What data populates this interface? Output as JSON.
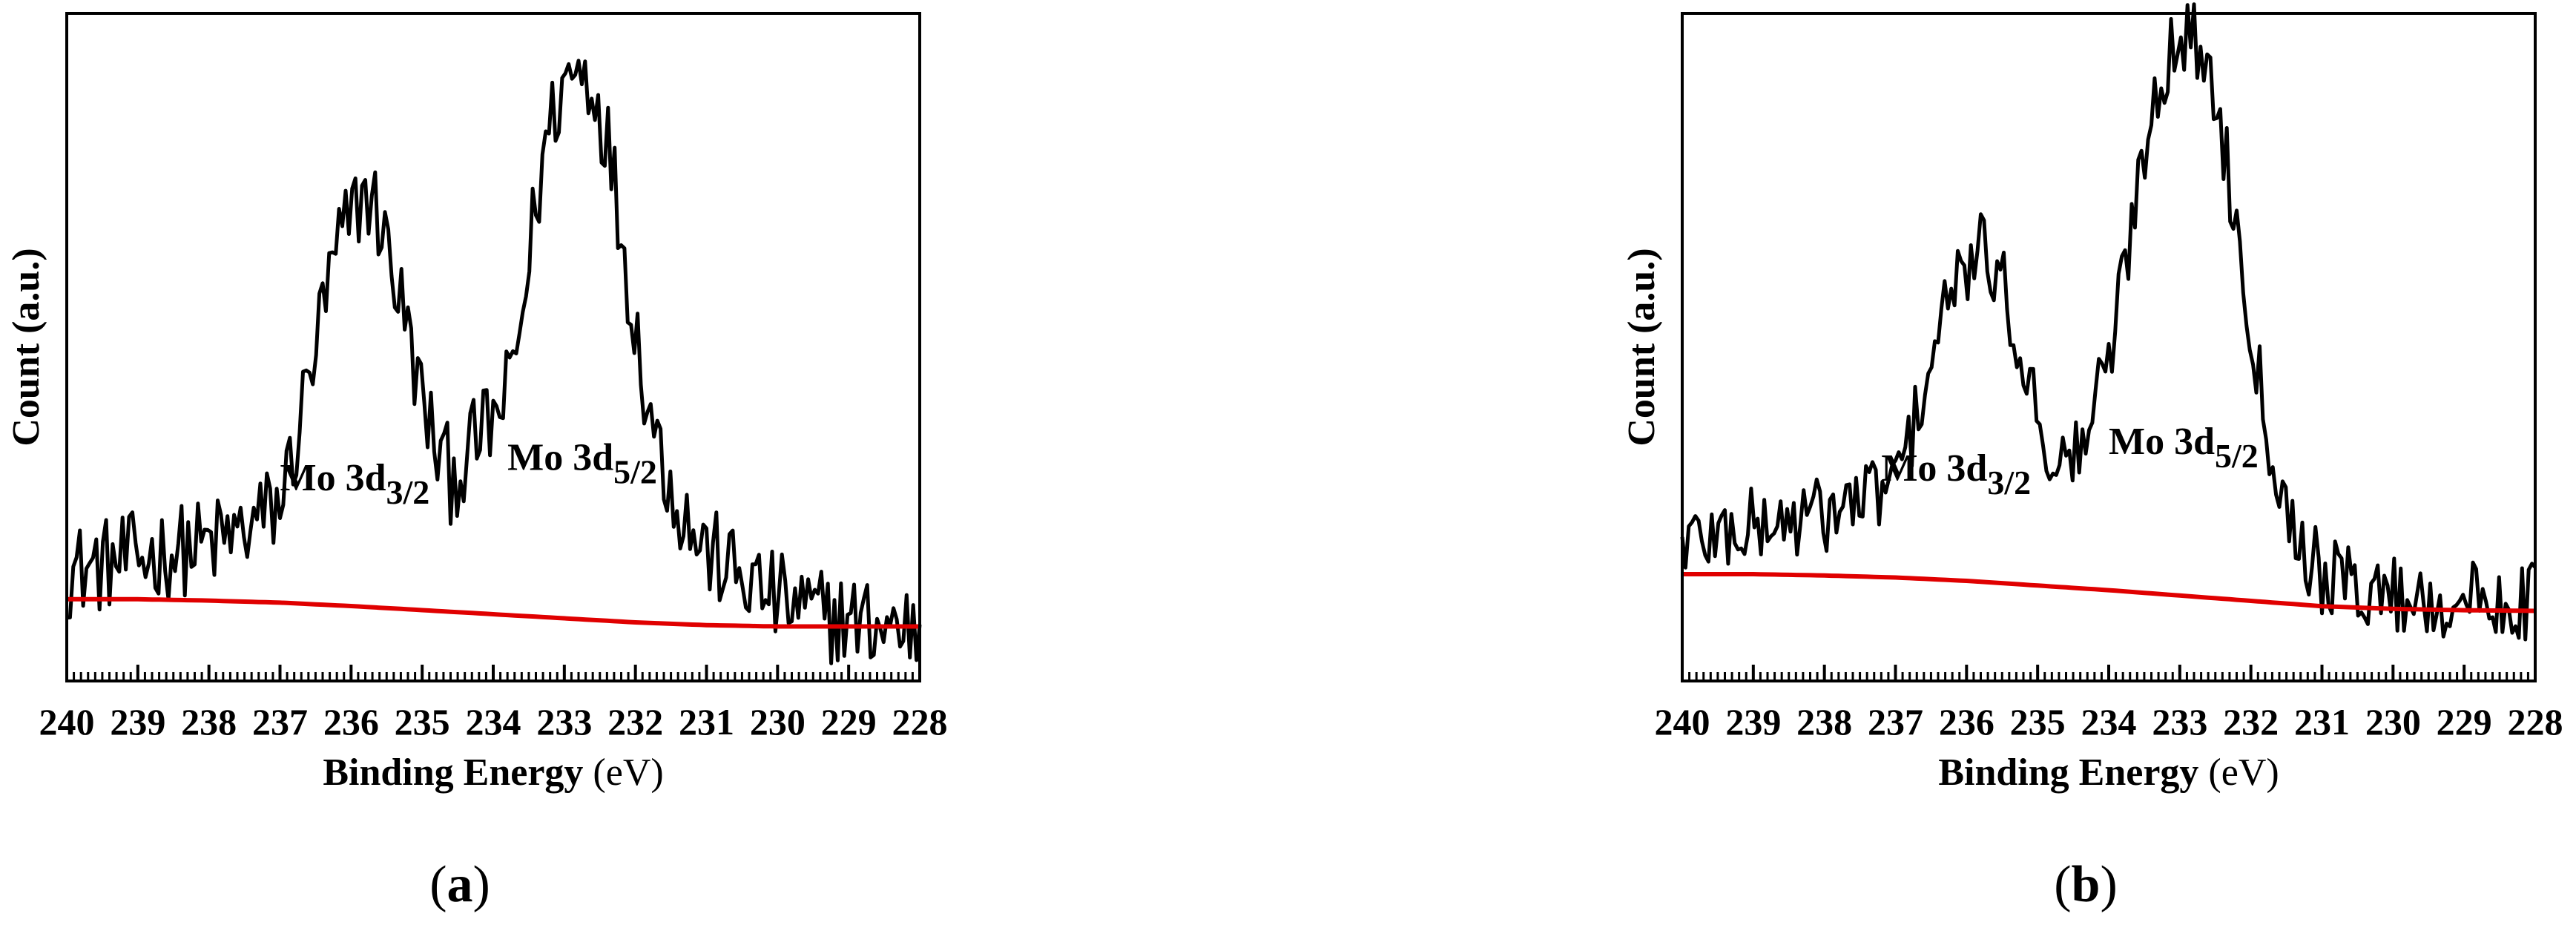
{
  "chart_data": [
    {
      "type": "line",
      "panel_label": {
        "open": "(",
        "letter": "a",
        "close": ")"
      },
      "xlabel": {
        "bold": "Binding Energy ",
        "normal": "(eV)"
      },
      "ylabel": "Count (a.u.)",
      "xlim": [
        240,
        228
      ],
      "ylim": [
        -0.08,
        0.9
      ],
      "x_reversed": true,
      "xticks": [
        240,
        239,
        238,
        237,
        236,
        235,
        234,
        233,
        232,
        231,
        230,
        229,
        228
      ],
      "grid": false,
      "annotations": [
        {
          "base": "Mo 3d",
          "sub": "3/2",
          "x": 237.0,
          "y": 0.2
        },
        {
          "base": "Mo 3d",
          "sub": "5/2",
          "x": 233.8,
          "y": 0.23
        }
      ],
      "series": [
        {
          "color": "#000000",
          "x": [
            240.0,
            239.5,
            239.0,
            238.5,
            238.0,
            237.5,
            237.0,
            236.8,
            236.6,
            236.4,
            236.2,
            236.0,
            235.8,
            235.6,
            235.4,
            235.2,
            235.0,
            234.8,
            234.6,
            234.4,
            234.2,
            234.0,
            233.8,
            233.6,
            233.4,
            233.2,
            233.0,
            232.8,
            232.6,
            232.4,
            232.2,
            232.0,
            231.8,
            231.6,
            231.4,
            231.2,
            231.0,
            230.5,
            230.0,
            229.5,
            229.0,
            228.5,
            228.0
          ],
          "y": [
            0.08,
            0.09,
            0.1,
            0.11,
            0.12,
            0.14,
            0.18,
            0.26,
            0.36,
            0.46,
            0.55,
            0.6,
            0.64,
            0.6,
            0.52,
            0.43,
            0.33,
            0.26,
            0.22,
            0.24,
            0.28,
            0.3,
            0.34,
            0.45,
            0.62,
            0.74,
            0.8,
            0.82,
            0.8,
            0.72,
            0.58,
            0.44,
            0.32,
            0.24,
            0.18,
            0.14,
            0.11,
            0.07,
            0.04,
            0.02,
            0.01,
            0.0,
            0.0
          ],
          "noise": 0.07
        },
        {
          "color": "#e00000",
          "x": [
            240,
            239,
            238,
            237,
            236,
            235,
            234,
            233,
            232,
            231,
            230,
            229,
            228
          ],
          "y": [
            0.04,
            0.04,
            0.038,
            0.035,
            0.03,
            0.024,
            0.018,
            0.012,
            0.006,
            0.002,
            0.0,
            0.0,
            0.0
          ]
        }
      ]
    },
    {
      "type": "line",
      "panel_label": {
        "open": "(",
        "letter": "b",
        "close": ")"
      },
      "xlabel": {
        "bold": "Binding Energy ",
        "normal": "(eV)"
      },
      "ylabel": "Count (a.u.)",
      "xlim": [
        240,
        228
      ],
      "ylim": [
        -0.1,
        0.9
      ],
      "x_reversed": true,
      "xticks": [
        240,
        239,
        238,
        237,
        236,
        235,
        234,
        233,
        232,
        231,
        230,
        229,
        228
      ],
      "grid": false,
      "annotations": [
        {
          "base": "Mo 3d",
          "sub": "3/2",
          "x": 237.2,
          "y": 0.2
        },
        {
          "base": "Mo 3d",
          "sub": "5/2",
          "x": 234.0,
          "y": 0.24
        }
      ],
      "series": [
        {
          "color": "#000000",
          "x": [
            240.0,
            239.5,
            239.0,
            238.5,
            238.0,
            237.5,
            237.0,
            236.8,
            236.6,
            236.4,
            236.2,
            236.0,
            235.8,
            235.6,
            235.4,
            235.2,
            235.0,
            234.8,
            234.6,
            234.4,
            234.2,
            234.0,
            233.8,
            233.6,
            233.4,
            233.2,
            233.0,
            232.8,
            232.6,
            232.4,
            232.2,
            232.0,
            231.8,
            231.6,
            231.4,
            231.2,
            231.0,
            230.5,
            230.0,
            229.5,
            229.0,
            228.5,
            228.0
          ],
          "y": [
            0.11,
            0.12,
            0.13,
            0.14,
            0.15,
            0.17,
            0.2,
            0.26,
            0.34,
            0.42,
            0.48,
            0.52,
            0.54,
            0.52,
            0.46,
            0.38,
            0.3,
            0.24,
            0.22,
            0.25,
            0.31,
            0.38,
            0.5,
            0.64,
            0.76,
            0.83,
            0.86,
            0.86,
            0.82,
            0.72,
            0.58,
            0.44,
            0.3,
            0.2,
            0.13,
            0.09,
            0.06,
            0.04,
            0.03,
            0.02,
            0.02,
            0.02,
            0.02
          ],
          "noise": 0.06
        },
        {
          "color": "#e00000",
          "x": [
            240,
            239,
            238,
            237,
            236,
            235,
            234,
            233,
            232,
            231,
            230,
            229,
            228
          ],
          "y": [
            0.06,
            0.06,
            0.058,
            0.055,
            0.05,
            0.043,
            0.036,
            0.028,
            0.02,
            0.012,
            0.008,
            0.006,
            0.005
          ]
        }
      ]
    }
  ]
}
